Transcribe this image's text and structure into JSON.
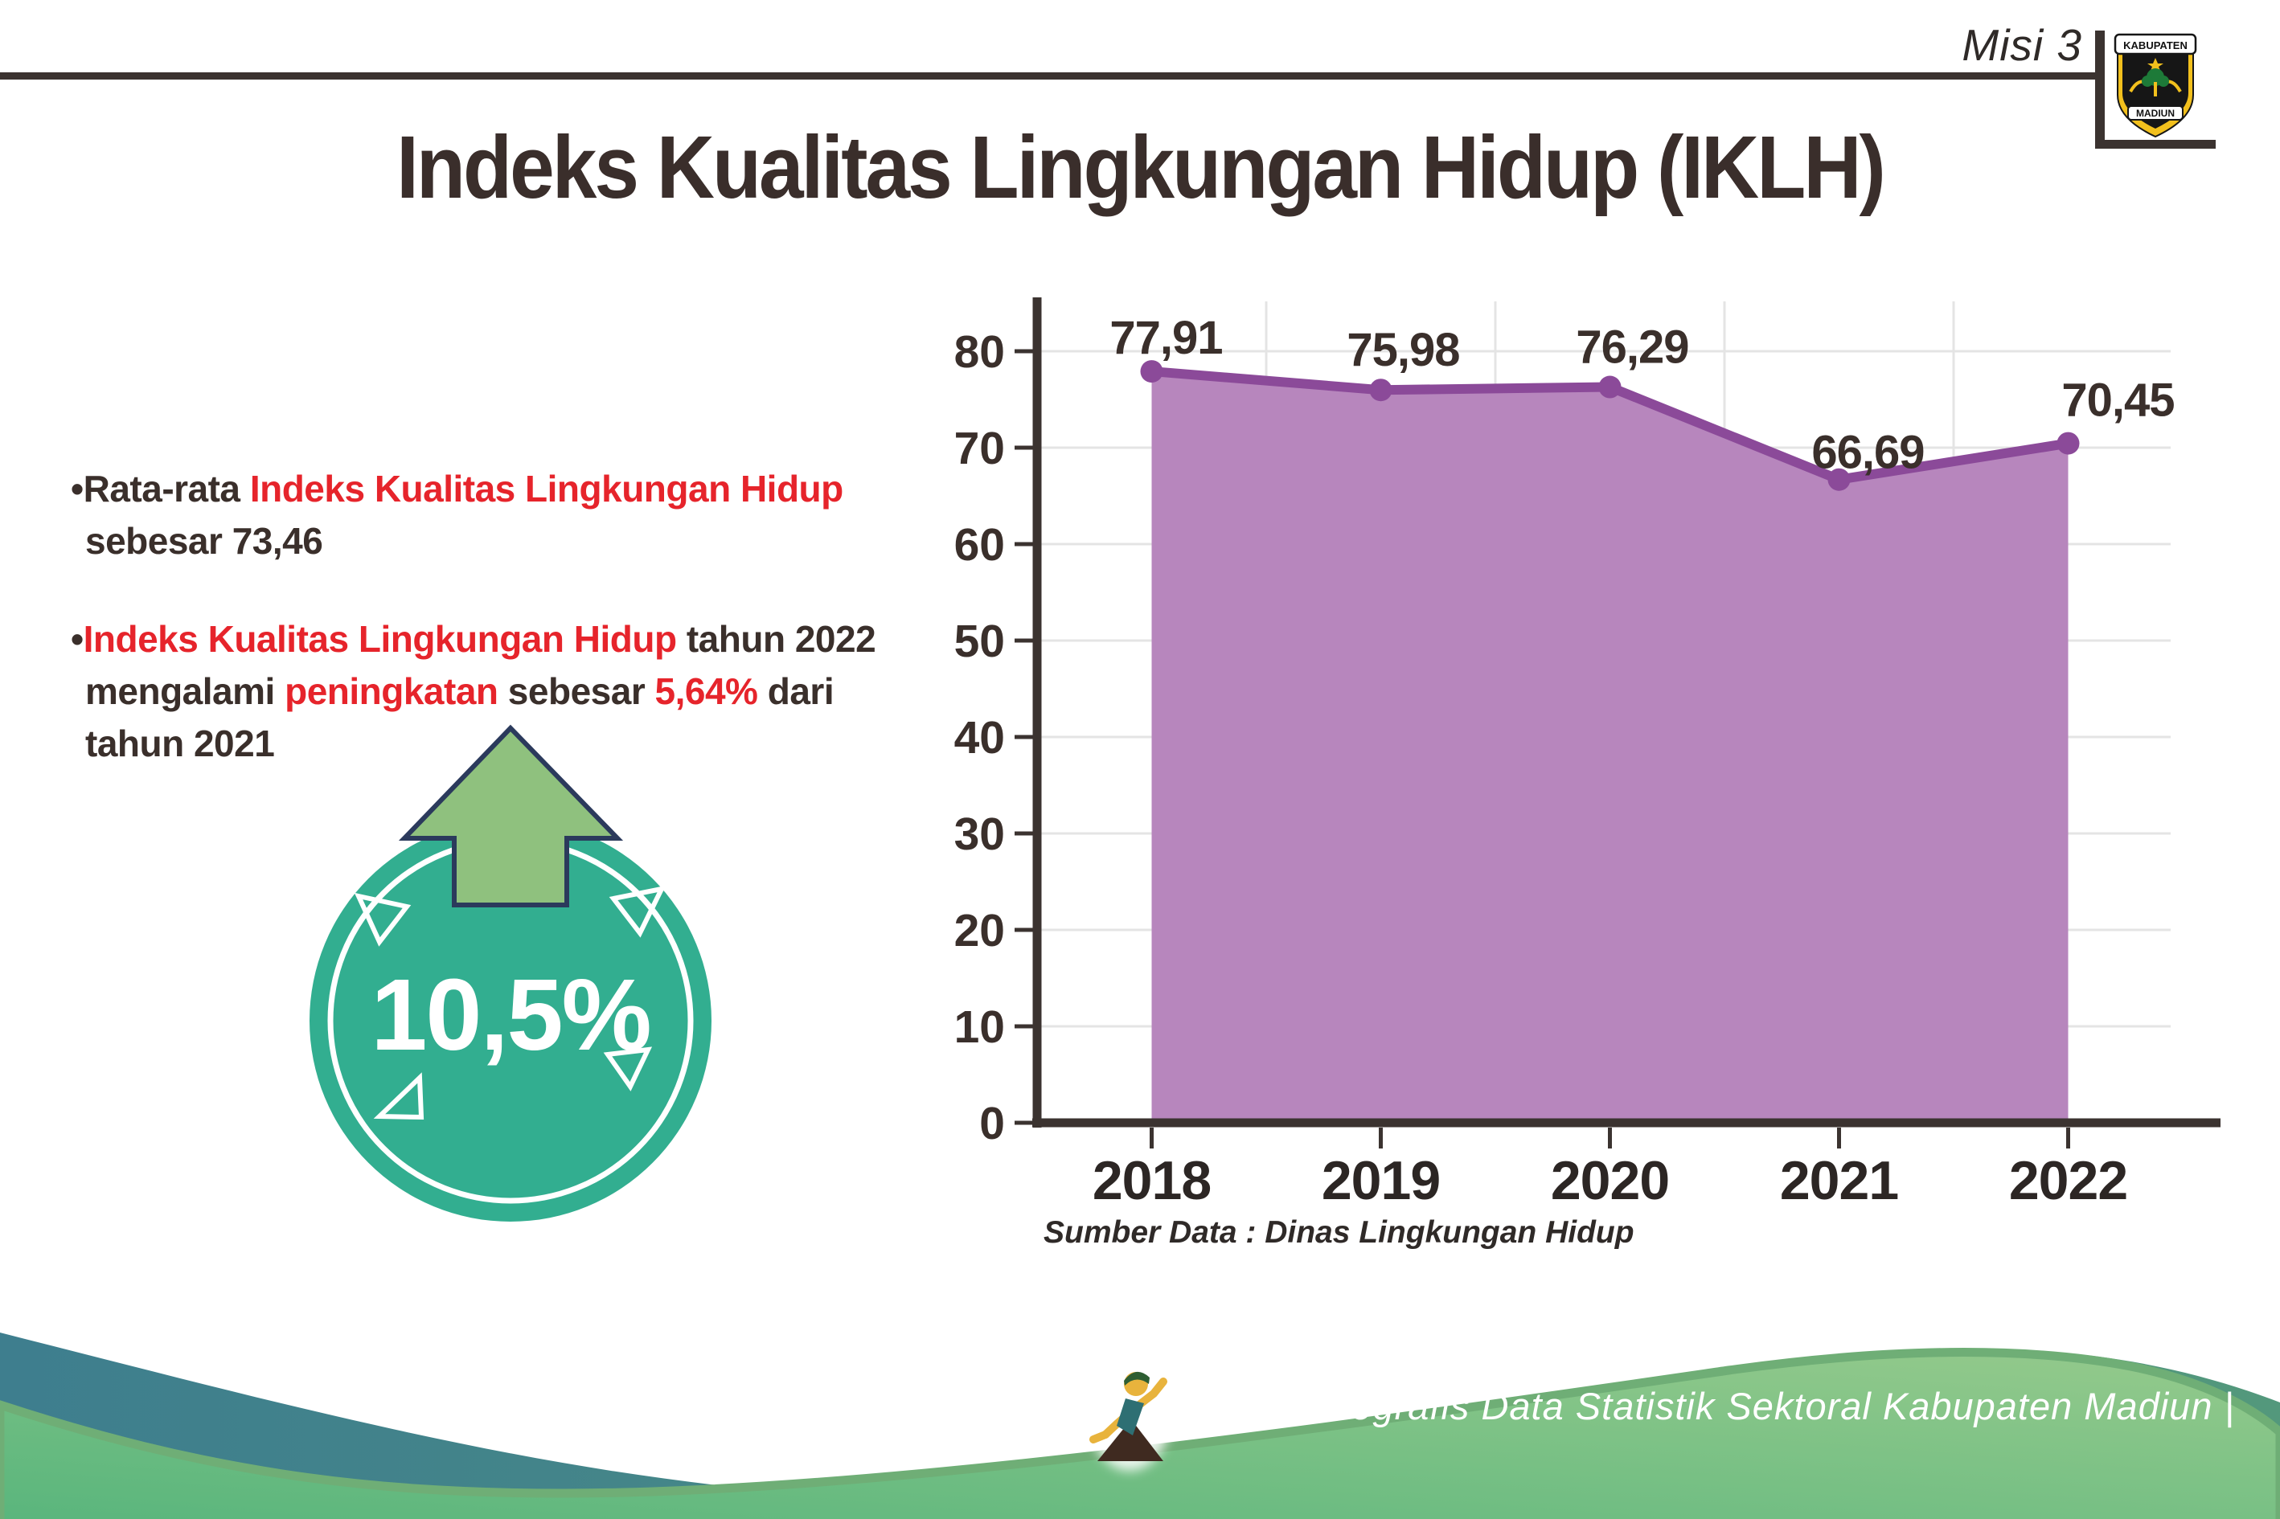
{
  "colors": {
    "dark": "#3a2f2b",
    "red": "#e6242b",
    "teal_badge": "#32ae90",
    "arrow_green": "#8fc17e",
    "arrow_outline": "#2b3a5c",
    "line_purple": "#8b4a99",
    "area_purple": "#b786bd",
    "gridline": "#e4e4e4",
    "axis": "#3b3330",
    "footer_teal_left": "#3e7e8e",
    "footer_teal_right": "#53987c",
    "footer_green_dark": "#58b57c",
    "footer_green_light": "#95ca8c",
    "footer_text": "#ffffff"
  },
  "header": {
    "misi_label": "Misi 3",
    "title": "Indeks Kualitas Lingkungan Hidup (IKLH)",
    "logo": {
      "top_text": "KABUPATEN",
      "bottom_text": "MADIUN"
    }
  },
  "bullets": {
    "items": [
      {
        "lines": [
          [
            {
              "t": "Rata-rata ",
              "c": "dark"
            },
            {
              "t": "Indeks Kualitas Lingkungan Hidup",
              "c": "red"
            }
          ],
          [
            {
              "t": "sebesar 73,46",
              "c": "dark"
            }
          ]
        ]
      },
      {
        "lines": [
          [
            {
              "t": "Indeks Kualitas Lingkungan Hidup",
              "c": "red"
            },
            {
              "t": " tahun 2022",
              "c": "dark"
            }
          ],
          [
            {
              "t": "mengalami ",
              "c": "dark"
            },
            {
              "t": "peningkatan",
              "c": "red"
            },
            {
              "t": " sebesar ",
              "c": "dark"
            },
            {
              "t": "5,64%",
              "c": "red"
            },
            {
              "t": " dari",
              "c": "dark"
            }
          ],
          [
            {
              "t": "tahun 2021",
              "c": "dark"
            }
          ]
        ]
      }
    ]
  },
  "badge": {
    "value": "10,5%"
  },
  "chart_data": {
    "type": "area",
    "categories": [
      "2018",
      "2019",
      "2020",
      "2021",
      "2022"
    ],
    "values": [
      77.91,
      75.98,
      76.29,
      66.69,
      70.45
    ],
    "labels": [
      "77,91",
      "75,98",
      "76,29",
      "66,69",
      "70,45"
    ],
    "yticks": [
      0,
      10,
      20,
      30,
      40,
      50,
      60,
      70,
      80
    ],
    "ylim": [
      0,
      80
    ],
    "title": "Indeks Kualitas Lingkungan Hidup (IKLH)",
    "xlabel": "",
    "ylabel": "",
    "legend": "none",
    "grid": "horizontal lines every 10 units; vertical lines between categories",
    "source": "Sumber Data : Dinas Lingkungan Hidup"
  },
  "footer": {
    "credit": "Media Infografis Data Statistik Sektoral Kabupaten Madiun |"
  }
}
